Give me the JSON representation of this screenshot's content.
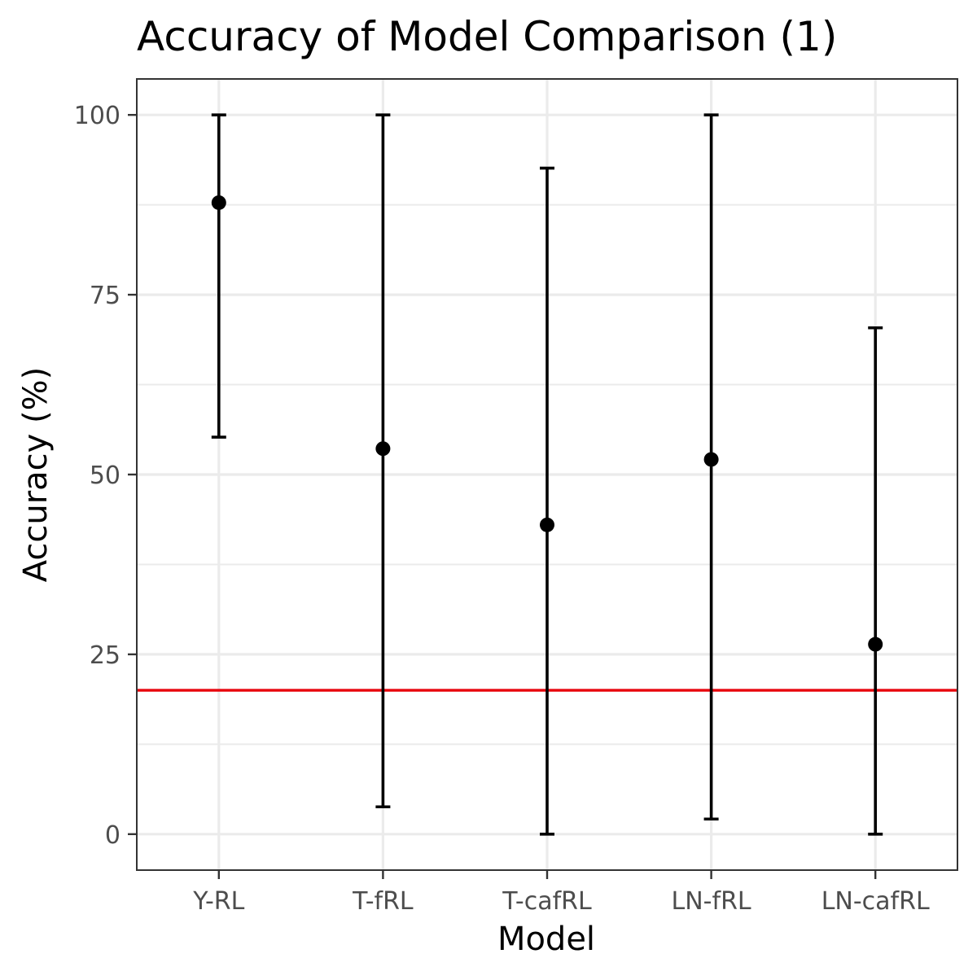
{
  "chart_data": {
    "type": "errorbar",
    "title": "Accuracy of Model Comparison (1)",
    "xlabel": "Model",
    "ylabel": "Accuracy (%)",
    "categories": [
      "Y-RL",
      "T-fRL",
      "T-cafRL",
      "LN-fRL",
      "LN-cafRL"
    ],
    "values": [
      87.8,
      53.6,
      43.0,
      52.1,
      26.4
    ],
    "lower": [
      55.2,
      3.8,
      0.0,
      2.1,
      0.0
    ],
    "upper": [
      100.0,
      100.0,
      92.6,
      100.0,
      70.4
    ],
    "ylim": [
      -5,
      105
    ],
    "yticks": [
      0,
      25,
      50,
      75,
      100
    ],
    "reference_line": {
      "y": 20,
      "color": "#e8000b"
    },
    "grid": true,
    "colors": {
      "points": "#000000",
      "errorbars": "#000000",
      "grid": "#ebebeb",
      "panel_border": "#333333"
    }
  }
}
